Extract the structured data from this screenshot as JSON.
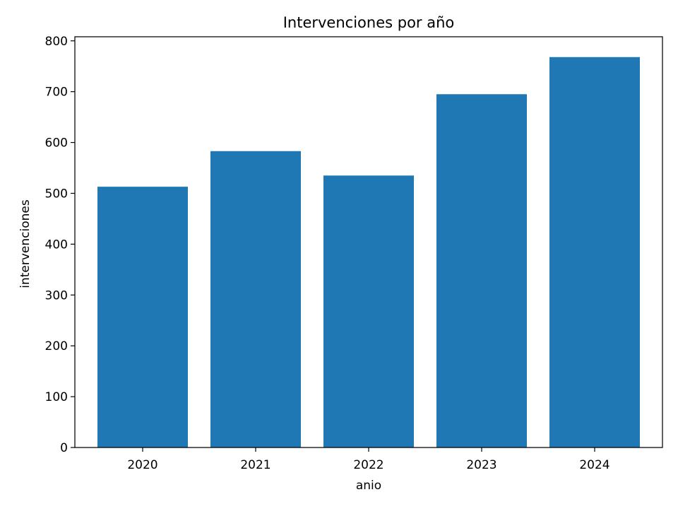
{
  "chart_data": {
    "type": "bar",
    "title": "Intervenciones por año",
    "xlabel": "anio",
    "ylabel": "intervenciones",
    "categories": [
      "2020",
      "2021",
      "2022",
      "2023",
      "2024"
    ],
    "values": [
      513,
      583,
      535,
      695,
      768
    ],
    "ylim": [
      0,
      808
    ],
    "yticks": [
      0,
      100,
      200,
      300,
      400,
      500,
      600,
      700,
      800
    ],
    "grid": false,
    "bar_color": "#1f77b4"
  }
}
